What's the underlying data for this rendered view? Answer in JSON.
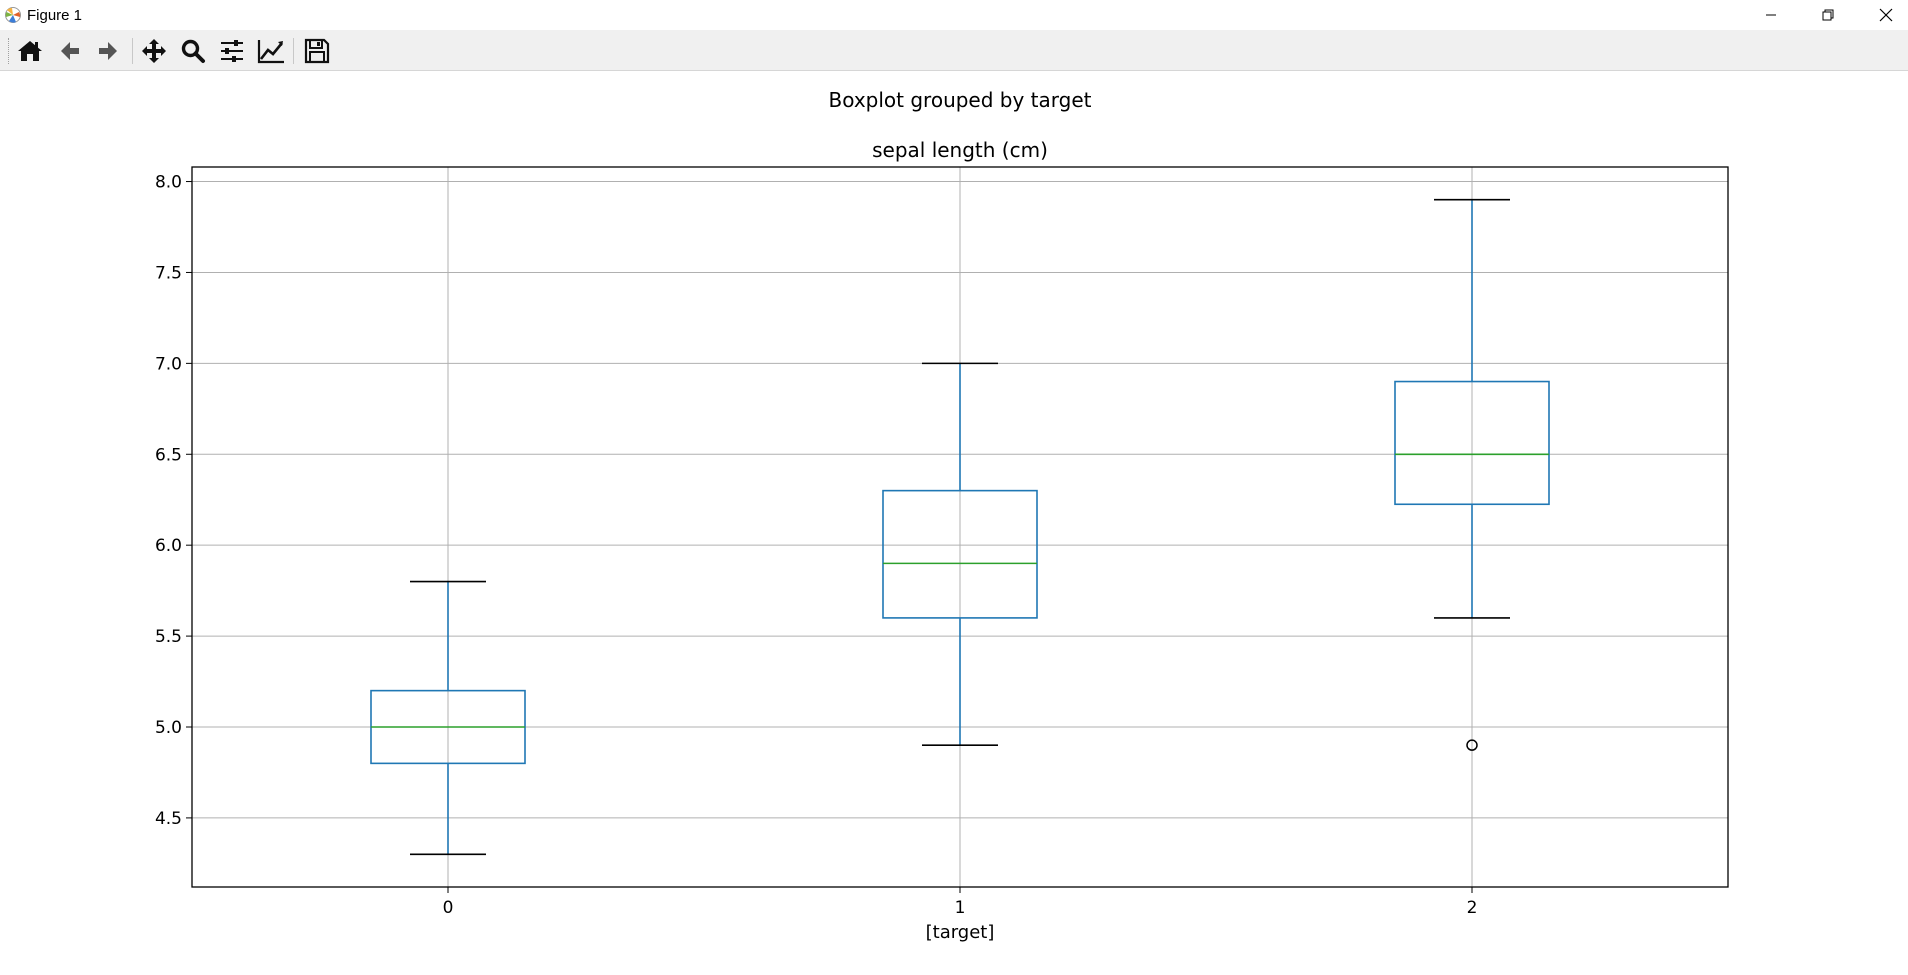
{
  "window": {
    "title": "Figure 1",
    "app_icon": "matplotlib-icon",
    "controls": [
      "minimize-icon",
      "maximize-icon",
      "close-icon"
    ]
  },
  "toolbar": {
    "buttons": [
      {
        "name": "home",
        "icon": "home-icon"
      },
      {
        "name": "back",
        "icon": "arrow-left-icon"
      },
      {
        "name": "forward",
        "icon": "arrow-right-icon"
      },
      {
        "name": "pan",
        "icon": "move-icon"
      },
      {
        "name": "zoom",
        "icon": "magnifier-icon"
      },
      {
        "name": "configure-subplots",
        "icon": "sliders-icon"
      },
      {
        "name": "edit-axis",
        "icon": "line-chart-icon"
      },
      {
        "name": "save",
        "icon": "floppy-icon"
      }
    ]
  },
  "chart_data": {
    "type": "boxplot",
    "suptitle": "Boxplot grouped by target",
    "title": "sepal length (cm)",
    "xlabel": "[target]",
    "ylabel": "",
    "categories": [
      "0",
      "1",
      "2"
    ],
    "ylim": [
      4.12,
      8.08
    ],
    "yticks": [
      "4.5",
      "5.0",
      "5.5",
      "6.0",
      "6.5",
      "7.0",
      "7.5",
      "8.0"
    ],
    "grid": true,
    "boxes": [
      {
        "category": "0",
        "whisker_low": 4.3,
        "q1": 4.8,
        "median": 5.0,
        "q3": 5.2,
        "whisker_high": 5.8,
        "outliers": []
      },
      {
        "category": "1",
        "whisker_low": 4.9,
        "q1": 5.6,
        "median": 5.9,
        "q3": 6.3,
        "whisker_high": 7.0,
        "outliers": []
      },
      {
        "category": "2",
        "whisker_low": 5.6,
        "q1": 6.225,
        "median": 6.5,
        "q3": 6.9,
        "whisker_high": 7.9,
        "outliers": [
          4.9
        ]
      }
    ],
    "colors": {
      "box": "#1f77b4",
      "median": "#2ca02c",
      "whisker_cap": "#000000",
      "grid": "#b0b0b0"
    }
  }
}
